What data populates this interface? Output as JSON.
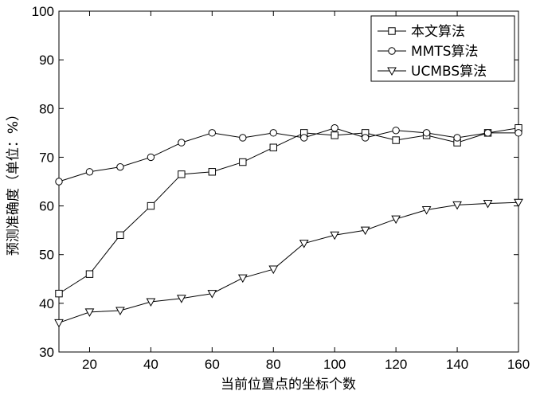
{
  "chart_data": {
    "type": "line",
    "xlabel": "当前位置点的坐标个数",
    "ylabel": "预测准确度（单位：%）",
    "xlim": [
      10,
      160
    ],
    "ylim": [
      30,
      100
    ],
    "x_ticks": [
      20,
      40,
      60,
      80,
      100,
      120,
      140,
      160
    ],
    "y_ticks": [
      30,
      40,
      50,
      60,
      70,
      80,
      90,
      100
    ],
    "x_tick_labels": [
      "20",
      "40",
      "60",
      "80",
      "100",
      "120",
      "140",
      "160"
    ],
    "y_tick_labels": [
      "30",
      "40",
      "50",
      "60",
      "70",
      "80",
      "90",
      "100"
    ],
    "grid": false,
    "legend_position": "top-right",
    "x": [
      10,
      20,
      30,
      40,
      50,
      60,
      70,
      80,
      90,
      100,
      110,
      120,
      130,
      140,
      150,
      160
    ],
    "series": [
      {
        "name": "本文算法",
        "marker": "square",
        "values": [
          42,
          46,
          54,
          60,
          66.5,
          67,
          69,
          72,
          75,
          74.5,
          75,
          73.5,
          74.5,
          73,
          75,
          76
        ]
      },
      {
        "name": "MMTS算法",
        "marker": "circle",
        "values": [
          65,
          67,
          68,
          70,
          73,
          75,
          74,
          75,
          74,
          76,
          74,
          75.5,
          75,
          74,
          75,
          75
        ]
      },
      {
        "name": "UCMBS算法",
        "marker": "triangle-down",
        "values": [
          36,
          38.2,
          38.5,
          40.3,
          41,
          42,
          45.2,
          47,
          52.3,
          54,
          55,
          57.3,
          59.2,
          60.2,
          60.5,
          60.7
        ]
      }
    ],
    "line_color": "#000000"
  }
}
